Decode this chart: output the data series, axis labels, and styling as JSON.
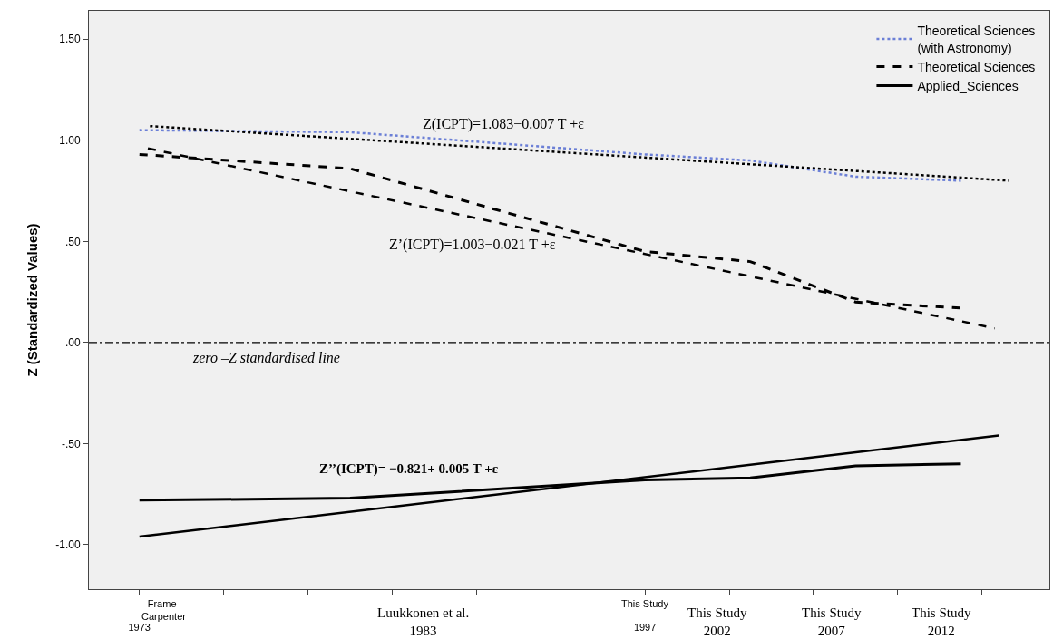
{
  "chart_data": {
    "type": "line",
    "ylabel": "Z (Standardized Values)",
    "xlim": [
      1970.6,
      2016.2
    ],
    "ylim": [
      -1.22,
      1.64
    ],
    "xticks": [
      1973,
      {
        "value": 1977,
        "label": null
      },
      {
        "value": 1981,
        "label": null
      },
      {
        "value": 1985,
        "label": null
      },
      {
        "value": 1989,
        "label": null
      },
      {
        "value": 1993,
        "label": null
      },
      1997,
      {
        "value": 2001,
        "label": null
      },
      {
        "value": 2005,
        "label": null
      },
      {
        "value": 2009,
        "label": null
      },
      {
        "value": 2013,
        "label": null
      }
    ],
    "yticks": [
      {
        "value": 1.5,
        "label": "1.50"
      },
      {
        "value": 1,
        "label": "1.00"
      },
      {
        "value": 0.5,
        "label": ".50"
      },
      {
        "value": 0,
        "label": ".00"
      },
      {
        "value": -0.5,
        "label": "-.50"
      },
      {
        "value": -1,
        "label": "-1.00"
      }
    ],
    "grid": false,
    "legend": "top right",
    "marker": "none",
    "series": [
      {
        "name": "Theoretical Sciences\n(with Astronomy)",
        "color": "#6b7fd6",
        "line_style": "dotted",
        "x": [
          1973,
          1983,
          1997,
          2002,
          2007,
          2012
        ],
        "values": [
          1.05,
          1.04,
          0.93,
          0.9,
          0.82,
          0.8
        ]
      },
      {
        "name": "Theoretical Sciences",
        "color": "#000000",
        "line_style": "dashed",
        "x": [
          1973,
          1983,
          1997,
          2002,
          2007,
          2012
        ],
        "values": [
          0.93,
          0.86,
          0.45,
          0.4,
          0.2,
          0.17
        ]
      },
      {
        "name": "Applied_Sciences",
        "color": "#000000",
        "line_style": "solid",
        "x": [
          1973,
          1983,
          1997,
          2002,
          2007,
          2012
        ],
        "values": [
          -0.78,
          -0.77,
          -0.68,
          -0.67,
          -0.61,
          -0.6
        ]
      },
      {
        "type": "line",
        "color": "#000000",
        "line_style": "dotted",
        "x": [
          1973.5,
          2014.3
        ],
        "values": [
          1.07,
          0.8
        ]
      },
      {
        "type": "line",
        "color": "#000000",
        "line_style": "dashed",
        "x": [
          1973.4,
          2013.6
        ],
        "values": [
          0.96,
          0.07
        ]
      },
      {
        "type": "line",
        "color": "#000000",
        "line_style": "solid",
        "x": [
          1973,
          2013.8
        ],
        "values": [
          -0.96,
          -0.46
        ]
      }
    ],
    "ref_lines": [
      {
        "axis": "y",
        "value": 0,
        "color": "#000000",
        "line_style": "dashdot"
      }
    ],
    "annotations": [
      "Z(ICPT)=1.083−0.007 T +ε",
      "Z’(ICPT)=1.003−0.021 T +ε",
      "Z’’(ICPT)= −0.821+ 0.005 T +ε",
      "zero –Z standardised line",
      "Frame-\nCarpenter",
      "This Study",
      "Luukkonen et al.\n1983",
      "This Study\n2002",
      "This Study\n2007",
      "This Study\n2012"
    ]
  }
}
